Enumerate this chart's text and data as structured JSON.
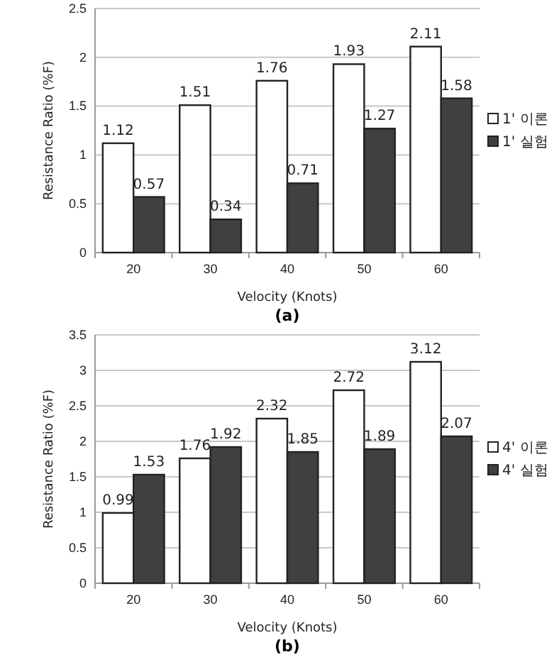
{
  "chart_data": [
    {
      "type": "bar",
      "title": "(a)",
      "xlabel": "Velocity (Knots)",
      "ylabel": "Resistance Ratio (%F)",
      "categories": [
        "20",
        "30",
        "40",
        "50",
        "60"
      ],
      "series": [
        {
          "name": "1' 이론",
          "color": "#ffffff",
          "values": [
            1.12,
            1.51,
            1.76,
            1.93,
            2.11
          ]
        },
        {
          "name": "1' 실험",
          "color": "#404040",
          "values": [
            0.57,
            0.34,
            0.71,
            1.27,
            1.58
          ]
        }
      ],
      "ylim": [
        0,
        2.5
      ],
      "yticks": [
        0,
        0.5,
        1,
        1.5,
        2,
        2.5
      ],
      "grid": "y",
      "legend": "right",
      "data_labels": true
    },
    {
      "type": "bar",
      "title": "(b)",
      "xlabel": "Velocity (Knots)",
      "ylabel": "Resistance Ratio (%F)",
      "categories": [
        "20",
        "30",
        "40",
        "50",
        "60"
      ],
      "series": [
        {
          "name": "4' 이론",
          "color": "#ffffff",
          "values": [
            0.99,
            1.76,
            2.32,
            2.72,
            3.12
          ]
        },
        {
          "name": "4' 실험",
          "color": "#404040",
          "values": [
            1.53,
            1.92,
            1.85,
            1.89,
            2.07
          ]
        }
      ],
      "ylim": [
        0,
        3.5
      ],
      "yticks": [
        0,
        0.5,
        1,
        1.5,
        2,
        2.5,
        3,
        3.5
      ],
      "grid": "y",
      "legend": "right",
      "data_labels": true
    }
  ]
}
